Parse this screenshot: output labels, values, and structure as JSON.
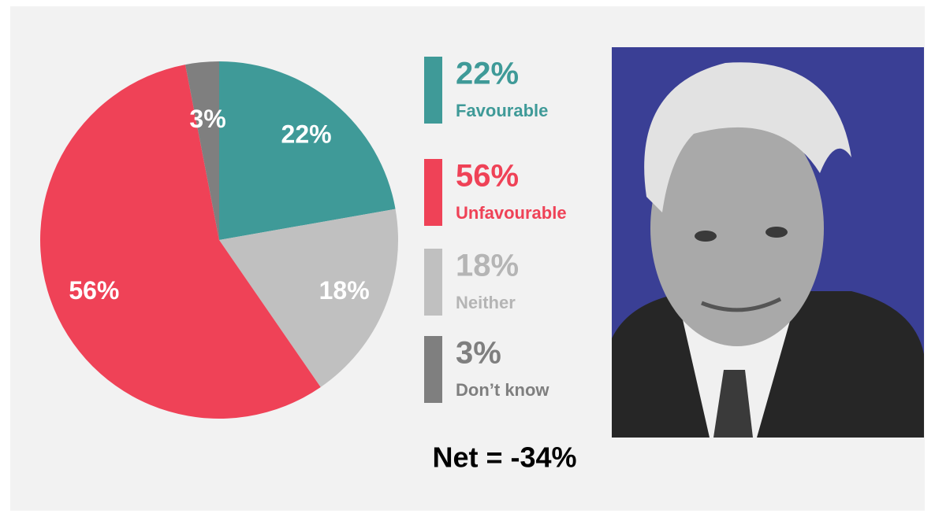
{
  "chart_data": {
    "type": "pie",
    "categories": [
      "Favourable",
      "Neither",
      "Unfavourable",
      "Don’t know"
    ],
    "values": [
      22,
      18,
      56,
      3
    ],
    "value_labels": [
      "22%",
      "18%",
      "56%",
      "3%"
    ],
    "colors": [
      "#3f9a98",
      "#c0c0c0",
      "#ef4257",
      "#7f7f7f"
    ],
    "legend_text_colors": [
      "#3f9a98",
      "#b5b5b5",
      "#ef4257",
      "#7f7f7f"
    ],
    "annotation": "Net = -34%"
  }
}
